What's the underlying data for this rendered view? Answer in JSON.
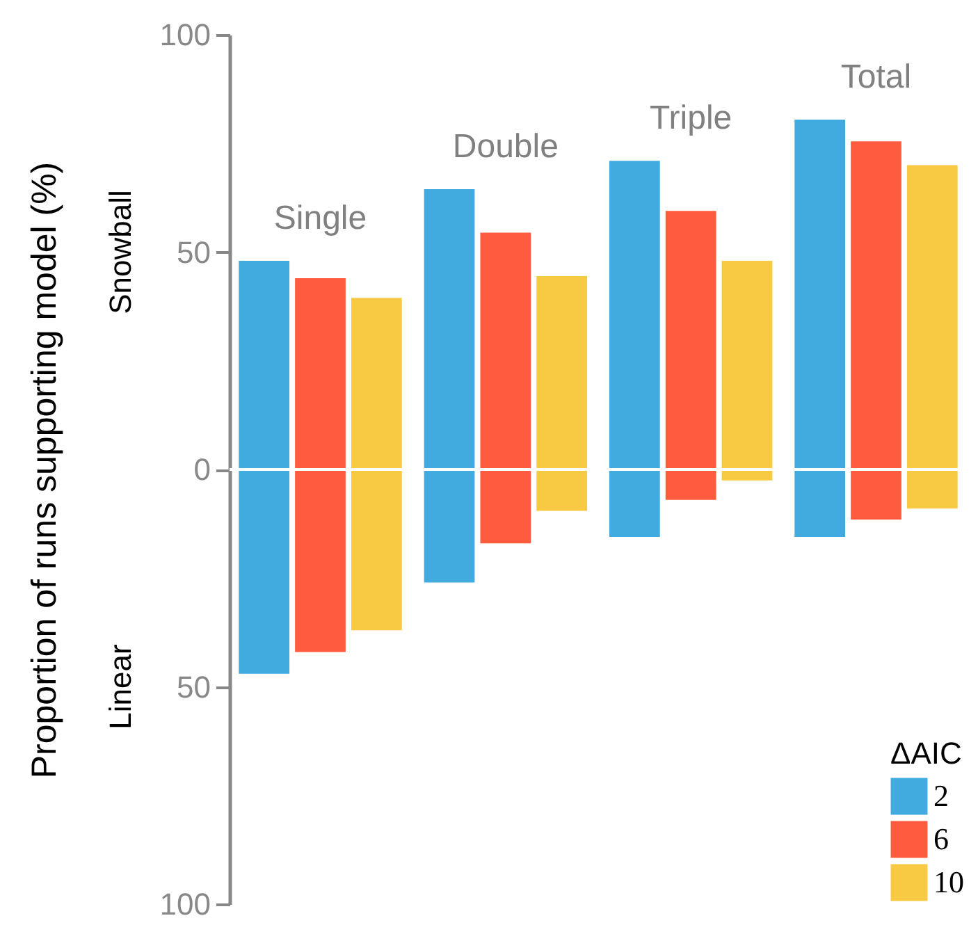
{
  "chart_data": {
    "type": "bar",
    "ylabel": "Proportion of runs supporting model (%)",
    "legend_title": "ΔAIC",
    "legend": "bottom right",
    "categories": [
      "Single",
      "Double",
      "Triple",
      "Total"
    ],
    "series": [
      {
        "name": "2",
        "color": "#41abe0",
        "base": [
          -47,
          -26,
          -15.5,
          -15.5
        ],
        "values": [
          95,
          90.5,
          86.5,
          96
        ]
      },
      {
        "name": "6",
        "color": "#ff5c3f",
        "base": [
          -42,
          -17,
          -7,
          -11.5
        ],
        "values": [
          86,
          71.5,
          66.5,
          87
        ]
      },
      {
        "name": "10",
        "color": "#f8c942",
        "base": [
          -37,
          -9.5,
          -2.5,
          -9
        ],
        "values": [
          76.5,
          54,
          50.5,
          79
        ]
      }
    ],
    "ylim": [
      -100,
      100
    ],
    "yticks": [
      {
        "value": -100,
        "label": "100"
      },
      {
        "value": -50,
        "label": "50"
      },
      {
        "value": 0,
        "label": "0"
      },
      {
        "value": 50,
        "label": "50"
      },
      {
        "value": 100,
        "label": "100"
      }
    ],
    "ref_lines": [
      {
        "axis": "y",
        "value": 0,
        "color": "#ffffff"
      }
    ],
    "annotations": [
      "Snowball",
      "Linear"
    ]
  }
}
